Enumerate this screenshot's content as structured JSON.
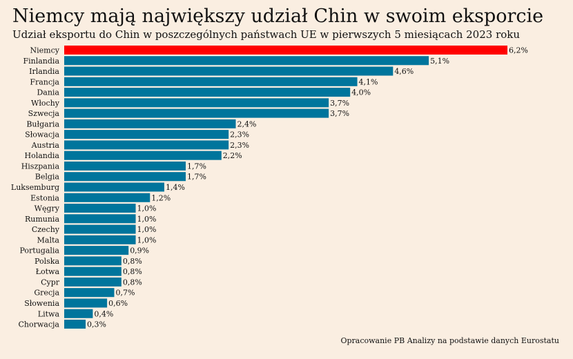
{
  "title": "Niemcy mają największy udział Chin w swoim eksporcie",
  "subtitle": "Udział eksportu do Chin w poszczególnych państwach UE w pierwszych 5 miesiącach 2023 roku",
  "source": "Opracowanie PB Analizy na podstawie danych Eurostatu",
  "colors": {
    "highlight": "#ff0000",
    "bar": "#00759c",
    "background": "#faeee1"
  },
  "chart_data": {
    "type": "bar",
    "orientation": "horizontal",
    "title": "Niemcy mają największy udział Chin w swoim eksporcie",
    "subtitle": "Udział eksportu do Chin w poszczególnych państwach UE w pierwszych 5 miesiącach 2023 roku",
    "categories": [
      "Niemcy",
      "Finlandia",
      "Irlandia",
      "Francja",
      "Dania",
      "Włochy",
      "Szwecja",
      "Bułgaria",
      "Słowacja",
      "Austria",
      "Holandia",
      "Hiszpania",
      "Belgia",
      "Luksemburg",
      "Estonia",
      "Węgry",
      "Rumunia",
      "Czechy",
      "Malta",
      "Portugalia",
      "Polska",
      "Łotwa",
      "Cypr",
      "Grecja",
      "Słowenia",
      "Litwa",
      "Chorwacja"
    ],
    "values": [
      6.2,
      5.1,
      4.6,
      4.1,
      4.0,
      3.7,
      3.7,
      2.4,
      2.3,
      2.3,
      2.2,
      1.7,
      1.7,
      1.4,
      1.2,
      1.0,
      1.0,
      1.0,
      1.0,
      0.9,
      0.8,
      0.8,
      0.8,
      0.7,
      0.6,
      0.4,
      0.3
    ],
    "value_labels": [
      "6,2%",
      "5,1%",
      "4,6%",
      "4,1%",
      "4,0%",
      "3,7%",
      "3,7%",
      "2,4%",
      "2,3%",
      "2,3%",
      "2,2%",
      "1,7%",
      "1,7%",
      "1,4%",
      "1,2%",
      "1,0%",
      "1,0%",
      "1,0%",
      "1,0%",
      "0,9%",
      "0,8%",
      "0,8%",
      "0,8%",
      "0,7%",
      "0,6%",
      "0,4%",
      "0,3%"
    ],
    "highlight_category": "Niemcy",
    "xlim": [
      0,
      6.2
    ],
    "grid": false,
    "legend": "none"
  }
}
